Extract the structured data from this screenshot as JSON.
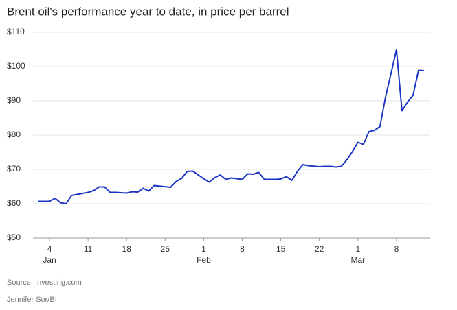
{
  "chart_data": {
    "type": "line",
    "title": "Brent oil's performance year to date, in price per barrel",
    "source": "Source: Investing.com",
    "credit": "Jennifer Sor/BI",
    "x": [
      "Jan 2",
      "Jan 4",
      "Jan 5",
      "Jan 6",
      "Jan 7",
      "Jan 8",
      "Jan 11",
      "Jan 12",
      "Jan 13",
      "Jan 14",
      "Jan 15",
      "Jan 16",
      "Jan 18",
      "Jan 19",
      "Jan 20",
      "Jan 21",
      "Jan 22",
      "Jan 23",
      "Jan 26",
      "Jan 27",
      "Jan 28",
      "Jan 29",
      "Jan 30",
      "Feb 1",
      "Feb 2",
      "Feb 3",
      "Feb 4",
      "Feb 5",
      "Feb 6",
      "Feb 8",
      "Feb 9",
      "Feb 10",
      "Feb 11",
      "Feb 12",
      "Feb 14",
      "Feb 15",
      "Feb 16",
      "Feb 17",
      "Feb 18",
      "Feb 19",
      "Feb 20",
      "Feb 22",
      "Feb 23",
      "Feb 24",
      "Feb 25",
      "Feb 26",
      "Feb 27",
      "Feb 28",
      "Mar 1",
      "Mar 2",
      "Mar 3",
      "Mar 4",
      "Mar 5",
      "Mar 6",
      "Mar 8",
      "Mar 9",
      "Mar 10",
      "Mar 11",
      "Mar 12",
      "Mar 13"
    ],
    "series": [
      {
        "name": "Brent",
        "color": "#1a34c4",
        "values": [
          60.7,
          60.7,
          61.6,
          60.3,
          60.0,
          62.4,
          63.3,
          63.8,
          64.9,
          64.9,
          63.3,
          63.3,
          63.1,
          63.5,
          63.4,
          64.5,
          63.7,
          65.3,
          64.8,
          66.5,
          67.4,
          69.4,
          69.5,
          67.3,
          66.3,
          67.6,
          68.4,
          67.1,
          67.5,
          67.1,
          68.7,
          68.6,
          69.1,
          67.1,
          67.1,
          67.2,
          67.9,
          66.8,
          69.4,
          71.4,
          71.1,
          70.8,
          70.9,
          70.9,
          70.7,
          70.9,
          72.8,
          75.2,
          77.9,
          77.3,
          81.0,
          81.4,
          82.5,
          91.0,
          104.9,
          87.1,
          89.6,
          91.6,
          98.9,
          98.8
        ]
      }
    ],
    "xlim": [
      "Jan 1",
      "Mar 14"
    ],
    "xticks": [
      {
        "value": "Jan 4",
        "label": "4"
      },
      {
        "value": "Jan 11",
        "label": "11"
      },
      {
        "value": "Jan 18",
        "label": "18"
      },
      {
        "value": "Jan 25",
        "label": "25"
      },
      {
        "value": "Feb 1",
        "label": "1"
      },
      {
        "value": "Feb 8",
        "label": "8"
      },
      {
        "value": "Feb 15",
        "label": "15"
      },
      {
        "value": "Feb 22",
        "label": "22"
      },
      {
        "value": "Mar 1",
        "label": "1"
      },
      {
        "value": "Mar 8",
        "label": "8"
      }
    ],
    "xtick_months": [
      {
        "value": "Jan 4",
        "label": "Jan"
      },
      {
        "value": "Feb 1",
        "label": "Feb"
      },
      {
        "value": "Mar 1",
        "label": "Mar"
      }
    ],
    "ylim": [
      50,
      110
    ],
    "yticks": [
      {
        "value": 50,
        "label": "$50"
      },
      {
        "value": 60,
        "label": "$60"
      },
      {
        "value": 70,
        "label": "$70"
      },
      {
        "value": 80,
        "label": "$80"
      },
      {
        "value": 90,
        "label": "$90"
      },
      {
        "value": 100,
        "label": "$100"
      },
      {
        "value": 110,
        "label": "$110"
      }
    ],
    "grid": true
  }
}
